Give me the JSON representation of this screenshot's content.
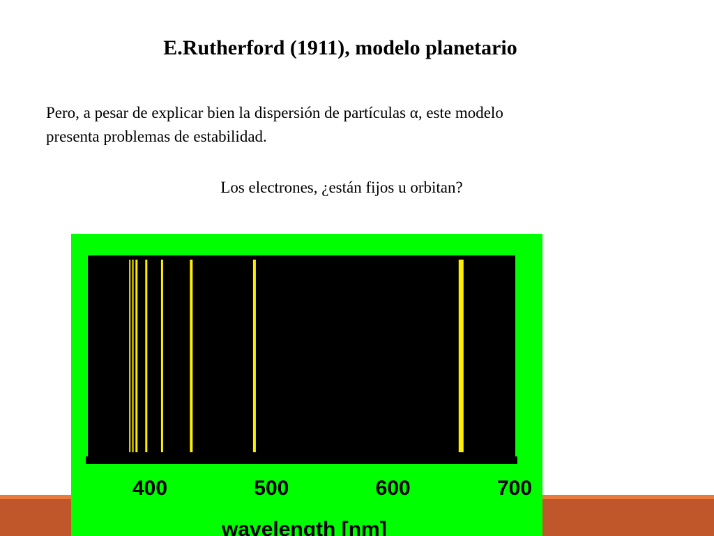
{
  "slide": {
    "title": "E.Rutherford (1911), modelo planetario",
    "paragraph_line1": "Pero, a pesar de explicar bien la dispersión de partículas α, este modelo",
    "paragraph_line2": "presenta problemas de estabilidad.",
    "question": "Los electrones, ¿están fijos u orbitan?"
  },
  "colors": {
    "figure_background": "#00ff00",
    "spectrum_background": "#000000",
    "emission_line": "#ffee00",
    "footer_band": "#c0572b",
    "footer_line": "#e87a3e"
  },
  "chart_data": {
    "type": "emission-spectrum",
    "xlabel": "wavelength [nm]",
    "xlim": [
      350,
      700
    ],
    "ticks": [
      {
        "value": 400,
        "label": "400"
      },
      {
        "value": 500,
        "label": "500"
      },
      {
        "value": 600,
        "label": "600"
      },
      {
        "value": 700,
        "label": "700"
      }
    ],
    "lines": [
      {
        "wavelength": 383.5,
        "weight": 1
      },
      {
        "wavelength": 386,
        "weight": 1
      },
      {
        "wavelength": 389,
        "weight": 2
      },
      {
        "wavelength": 397,
        "weight": 2
      },
      {
        "wavelength": 410,
        "weight": 2
      },
      {
        "wavelength": 434,
        "weight": 3
      },
      {
        "wavelength": 486,
        "weight": 3
      },
      {
        "wavelength": 656,
        "weight": 4
      }
    ]
  }
}
